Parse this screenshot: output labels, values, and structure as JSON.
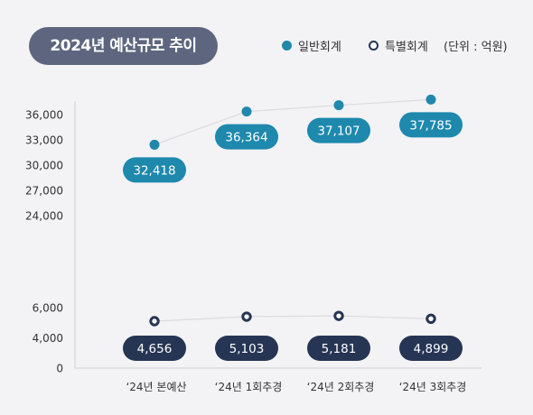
{
  "title": "2024년 예산규모 추이",
  "unit": "(단위 : 억원)",
  "colors": {
    "general": "#1e88ad",
    "special": "#263553",
    "title_bg": "#5e667f",
    "axis": "#cfcfd4",
    "line": "#d9dbe0"
  },
  "chart_data": {
    "type": "line",
    "categories": [
      "‘24년 본예산",
      "‘24년 1회추경",
      "‘24년 2회추경",
      "‘24년 3회추경"
    ],
    "series": [
      {
        "name": "일반회계",
        "values": [
          32418,
          36364,
          37107,
          37785
        ],
        "labels": [
          "32,418",
          "36,364",
          "37,107",
          "37,785"
        ]
      },
      {
        "name": "특별회계",
        "values": [
          4656,
          5103,
          5181,
          4899
        ],
        "labels": [
          "4,656",
          "5,103",
          "5,181",
          "4,899"
        ]
      }
    ],
    "y_ticks_upper": [
      "36,000",
      "33,000",
      "30,000",
      "27,000",
      "24,000"
    ],
    "y_ticks_lower": [
      "6,000",
      "4,000",
      "0"
    ],
    "ylim_upper": [
      24000,
      36000
    ],
    "ylim_lower": [
      0,
      6000
    ],
    "broken_axis": true,
    "grid": false,
    "legend_position": "top-right"
  }
}
